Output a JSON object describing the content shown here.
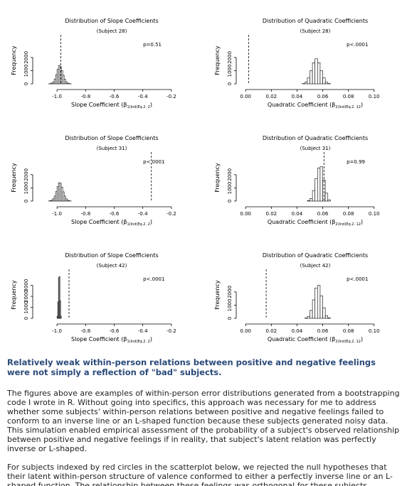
{
  "chart_data": [
    {
      "type": "histogram",
      "title": "Distribution of Slope Coefficients",
      "subtitle": "(Subject 28)",
      "ylabel": "Frequency",
      "xlabel": "Slope Coefficient (β",
      "xlabel_sub": "1(Ind)Eq.2. 2",
      "xlabel_end": ")",
      "bins": [
        -1.06,
        -1.05,
        -1.04,
        -1.03,
        -1.02,
        -1.01,
        -1.0,
        -0.99,
        -0.98,
        -0.97,
        -0.96,
        -0.95,
        -0.94,
        -0.93,
        -0.92,
        -0.91,
        -0.9
      ],
      "values": [
        5,
        20,
        60,
        150,
        350,
        700,
        1100,
        1400,
        1300,
        1000,
        650,
        350,
        160,
        60,
        20,
        5
      ],
      "observed": -0.973,
      "annotation": "p=0.51",
      "xlim": [
        -1.14,
        -0.08
      ],
      "xticks": [
        {
          "value": -1.0,
          "label": "-1.0"
        },
        -0.8,
        -0.6,
        -0.4,
        -0.2
      ],
      "ylim": [
        0,
        3500
      ],
      "yticks": [
        0,
        1000,
        2000
      ],
      "color": "#ffffff"
    },
    {
      "type": "histogram",
      "title": "Distribution of Quadratic Coefficients",
      "subtitle": "(Subject 28)",
      "ylabel": "Frequency",
      "xlabel": "Quadratic Coefficient (β",
      "xlabel_sub": "2(Ind)Eq.2. 12",
      "xlabel_end": ")",
      "bins": [
        0.044,
        0.046,
        0.048,
        0.05,
        0.052,
        0.054,
        0.056,
        0.058,
        0.06,
        0.062,
        0.064,
        0.066
      ],
      "values": [
        20,
        120,
        450,
        1000,
        1600,
        1900,
        1600,
        1000,
        450,
        120,
        20
      ],
      "observed": 0.0023,
      "annotation": "p<.0001",
      "xlim": [
        -0.004,
        0.114
      ],
      "xticks": [
        {
          "value": 0,
          "label": "0.00"
        },
        {
          "value": 0.02,
          "label": "0.02"
        },
        {
          "value": 0.04,
          "label": "0.04"
        },
        {
          "value": 0.06,
          "label": "0.06"
        },
        {
          "value": 0.08,
          "label": "0.08"
        },
        {
          "value": 0.1,
          "label": "0.10"
        }
      ],
      "ylim": [
        0,
        3500
      ],
      "yticks": [
        0,
        1000,
        2000
      ],
      "color": "#ffffff"
    },
    {
      "type": "histogram",
      "title": "Distribution of Slope Coefficients",
      "subtitle": "(Subject 31)",
      "ylabel": "Frequency",
      "xlabel": "Slope Coefficient (β",
      "xlabel_sub": "1(Ind)Eq.2. 2",
      "xlabel_end": ")",
      "bins": [
        -1.06,
        -1.05,
        -1.04,
        -1.03,
        -1.02,
        -1.01,
        -1.0,
        -0.99,
        -0.98,
        -0.97,
        -0.96,
        -0.95,
        -0.94,
        -0.93,
        -0.92,
        -0.91,
        -0.9
      ],
      "values": [
        10,
        30,
        80,
        180,
        380,
        720,
        1100,
        1400,
        1350,
        1050,
        700,
        380,
        170,
        70,
        25,
        8
      ],
      "observed": -0.34,
      "annotation": "p<.0001",
      "xlim": [
        -1.14,
        -0.08
      ],
      "xticks": [
        {
          "value": -1.0,
          "label": "-1.0"
        },
        -0.8,
        -0.6,
        -0.4,
        -0.2
      ],
      "ylim": [
        0,
        3500
      ],
      "yticks": [
        0,
        1000,
        2000
      ],
      "color": "#ffffff"
    },
    {
      "type": "histogram",
      "title": "Distribution of Quadratic Coefficients",
      "subtitle": "(Subject 31)",
      "ylabel": "Frequency",
      "xlabel": "Quadratic Coefficient (β",
      "xlabel_sub": "2(Ind)Eq.2. 12",
      "xlabel_end": ")",
      "bins": [
        0.048,
        0.05,
        0.052,
        0.054,
        0.056,
        0.058,
        0.06,
        0.062,
        0.064,
        0.066
      ],
      "values": [
        30,
        200,
        800,
        1700,
        2500,
        2600,
        1600,
        600,
        100
      ],
      "observed": 0.061,
      "annotation": "p=0.99",
      "xlim": [
        -0.004,
        0.114
      ],
      "xticks": [
        {
          "value": 0,
          "label": "0.00"
        },
        {
          "value": 0.02,
          "label": "0.02"
        },
        {
          "value": 0.04,
          "label": "0.04"
        },
        {
          "value": 0.06,
          "label": "0.06"
        },
        {
          "value": 0.08,
          "label": "0.08"
        },
        {
          "value": 0.1,
          "label": "0.10"
        }
      ],
      "ylim": [
        0,
        3500
      ],
      "yticks": [
        0,
        1000,
        2000
      ],
      "color": "#ffffff"
    },
    {
      "type": "histogram",
      "title": "Distribution of Slope Coefficients",
      "subtitle": "(Subject 42)",
      "ylabel": "Frequency",
      "xlabel": "Slope Coefficient (β",
      "xlabel_sub": "1(Ind)Eq.2. 2",
      "xlabel_end": ")",
      "bins": [
        -1.0,
        -0.995,
        -0.99,
        -0.985,
        -0.98,
        -0.975,
        -0.97
      ],
      "values": [
        200,
        1500,
        3700,
        3800,
        1600,
        200
      ],
      "observed": -0.916,
      "annotation": "p<.0001",
      "xlim": [
        -1.14,
        -0.08
      ],
      "xticks": [
        {
          "value": -1.0,
          "label": "-1.0"
        },
        -0.8,
        -0.6,
        -0.4,
        -0.2
      ],
      "ylim": [
        0,
        4200
      ],
      "yticks": [
        0,
        1000,
        2000,
        3000
      ],
      "color": "#ffffff"
    },
    {
      "type": "histogram",
      "title": "Distribution of Quadratic Coefficients",
      "subtitle": "(Subject 42)",
      "ylabel": "Frequency",
      "xlabel": "Quadratic Coefficient (β",
      "xlabel_sub": "2(Ind)Eq.2. 12",
      "xlabel_end": ")",
      "bins": [
        0.046,
        0.048,
        0.05,
        0.052,
        0.054,
        0.056,
        0.058,
        0.06,
        0.062,
        0.064,
        0.066
      ],
      "values": [
        20,
        150,
        600,
        1400,
        2300,
        2500,
        1700,
        800,
        200,
        30
      ],
      "observed": 0.016,
      "annotation": "p<.0001",
      "xlim": [
        -0.004,
        0.114
      ],
      "xticks": [
        {
          "value": 0,
          "label": "0.00"
        },
        {
          "value": 0.02,
          "label": "0.02"
        },
        {
          "value": 0.04,
          "label": "0.04"
        },
        {
          "value": 0.06,
          "label": "0.06"
        },
        {
          "value": 0.08,
          "label": "0.08"
        },
        {
          "value": 0.1,
          "label": "0.10"
        }
      ],
      "ylim": [
        0,
        3500
      ],
      "yticks": [
        0,
        1000,
        2000
      ],
      "color": "#ffffff"
    }
  ],
  "document": {
    "heading": "Relatively weak within-person relations between positive and negative feelings were not simply a reflection of \"bad\" subjects.",
    "paragraphs": [
      "The figures above are examples of within-person error distributions generated from a bootstrapping code I wrote in R.  Without going into specifics, this approach was necessary for me to address whether some subjects' within-person relations between positive and negative feelings failed to conform to an inverse line or an L-shaped function because these subjects generated noisy data.  This simulation enabled empirical assessment of the probability of a subject's observed relationship between positive and negative feelings if in reality, that subject's latent relation was perfectly inverse or L-shaped.",
      "For subjects indexed by red circles in the scatterplot below, we rejected the null hypotheses that their latent within-person structure of valence conformed to either a perfectly inverse line or an L-shaped function.  The relationship between these feelings was orthogonal for these subjects."
    ]
  }
}
